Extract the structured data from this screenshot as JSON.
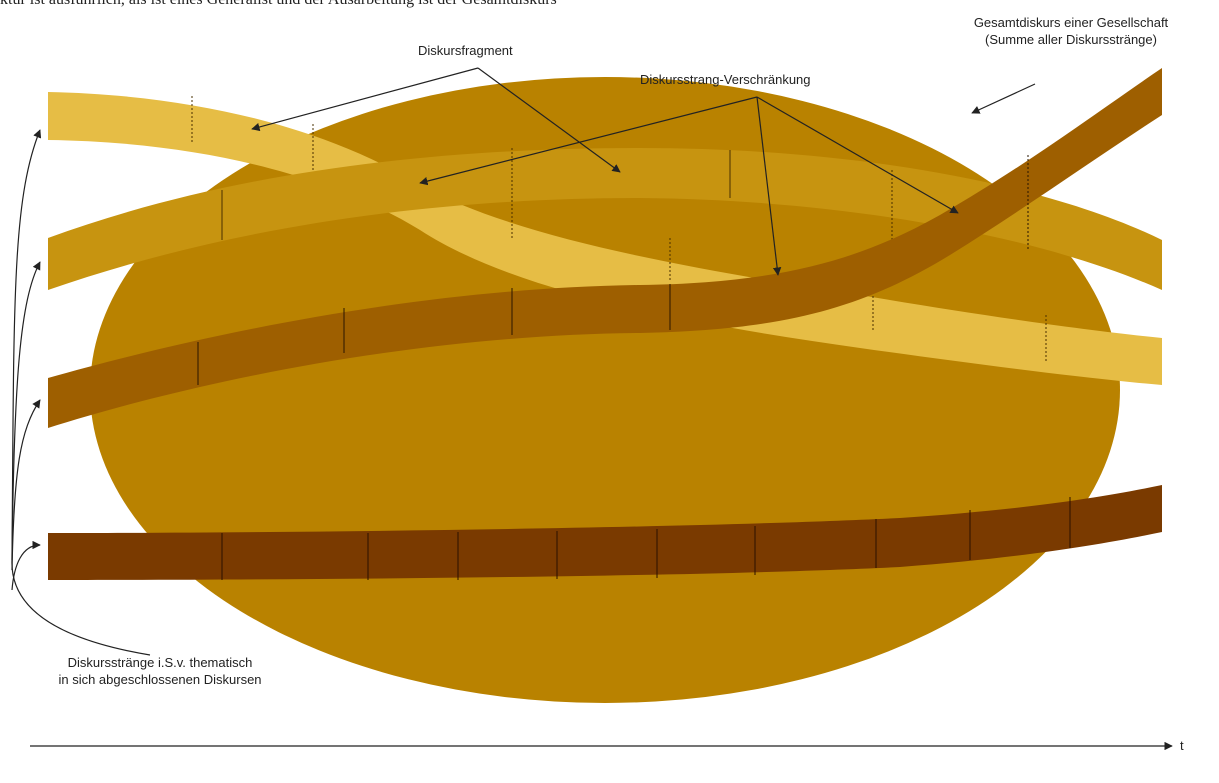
{
  "caption_cut": "ktur ist ausführlich, als ist eines Generalist und der Ausarbeitung ist der Gesamtdiskurs",
  "labels": {
    "fragment": "Diskursfragment",
    "intertwining": "Diskursstrang-Verschränkung",
    "total_line1": "Gesamtdiskurs einer Gesellschaft",
    "total_line2": "(Summe aller Diskursstränge)",
    "strands_line1": "Diskursstränge i.S.v. thematisch",
    "strands_line2": "in sich abgeschlossenen Diskursen",
    "time_axis": "t"
  },
  "colors": {
    "ellipse": "#b98200",
    "light_strand": "#e6bd45",
    "mid_strand": "#c79410",
    "dark_strand": "#9e5f00",
    "darkest_strand": "#7a3a00",
    "line": "#222222"
  }
}
